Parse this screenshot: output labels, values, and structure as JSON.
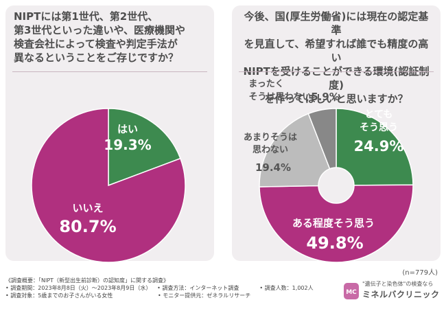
{
  "colors": {
    "magenta": "#b0307f",
    "green": "#3d8a4f",
    "gray": "#888888",
    "lightgray": "#bcbcbc"
  },
  "left": {
    "question": "NIPTには第1世代、第2世代、\n第3世代といった違いや、医療機関や\n検査会社によって検査や判定手法が\n異なるということをご存じですか？"
  },
  "right": {
    "question": "今後、国(厚生労働省)には現在の認定基準\nを見直して、希望すれば誰でも精度の高い\nNIPTを受けることができる環境(認証制度)\nを作ってほしいと思いますか？",
    "n_note": "(n=779人)"
  },
  "chart_data": [
    {
      "type": "pie",
      "title": "NIPTには第1世代、第2世代、第3世代といった違いや、医療機関や検査会社によって検査や判定手法が異なるということをご存じですか？",
      "categories": [
        "はい",
        "いいえ"
      ],
      "values": [
        19.3,
        80.7
      ],
      "value_labels": [
        "19.3%",
        "80.7%"
      ],
      "colors": [
        "#3d8a4f",
        "#b0307f"
      ]
    },
    {
      "type": "pie",
      "subtype": "donut",
      "title": "今後、国(厚生労働省)には現在の認定基準を見直して、希望すれば誰でも精度の高いNIPTを受けることができる環境(認証制度)を作ってほしいと思いますか？",
      "categories": [
        "とてもそう思う",
        "ある程度そう思う",
        "あまりそうは思わない",
        "まったくそうは思わない"
      ],
      "values": [
        24.9,
        49.8,
        19.4,
        5.9
      ],
      "value_labels": [
        "24.9%",
        "49.8%",
        "19.4%",
        "5.9%"
      ],
      "colors": [
        "#3d8a4f",
        "#b0307f",
        "#bcbcbc",
        "#888888"
      ]
    }
  ],
  "labels": {
    "left": [
      {
        "name": "はい",
        "value": "19.3%"
      },
      {
        "name": "いいえ",
        "value": "80.7%"
      }
    ],
    "right": [
      {
        "line1": "とても",
        "line2": "そう思う",
        "value": "24.9%"
      },
      {
        "line1": "ある程度そう思う",
        "value": "49.8%"
      },
      {
        "line1": "あまりそうは",
        "line2": "思わない",
        "value": "19.4%"
      },
      {
        "line1": "まったく",
        "line2": "そうは思わない",
        "value": "5.9%"
      }
    ]
  },
  "footer": {
    "title": "《調査概要：「NIPT（新型出生前診断）の認知度」に関する調査》",
    "period": "• 調査期間：2023年8月8日（火）〜2023年8月9日（水）",
    "method": "• 調査方法：インターネット調査",
    "count": "• 調査人数：1,002人",
    "target": "• 調査対象：5歳までのお子さんがいる女性",
    "provider": "• モニター提供元：ゼネラルリサーチ"
  },
  "logo": {
    "tagline": "\"遺伝子と染色体\"の検査なら",
    "name": "ミネルバクリニック",
    "mark_text": "MC"
  }
}
